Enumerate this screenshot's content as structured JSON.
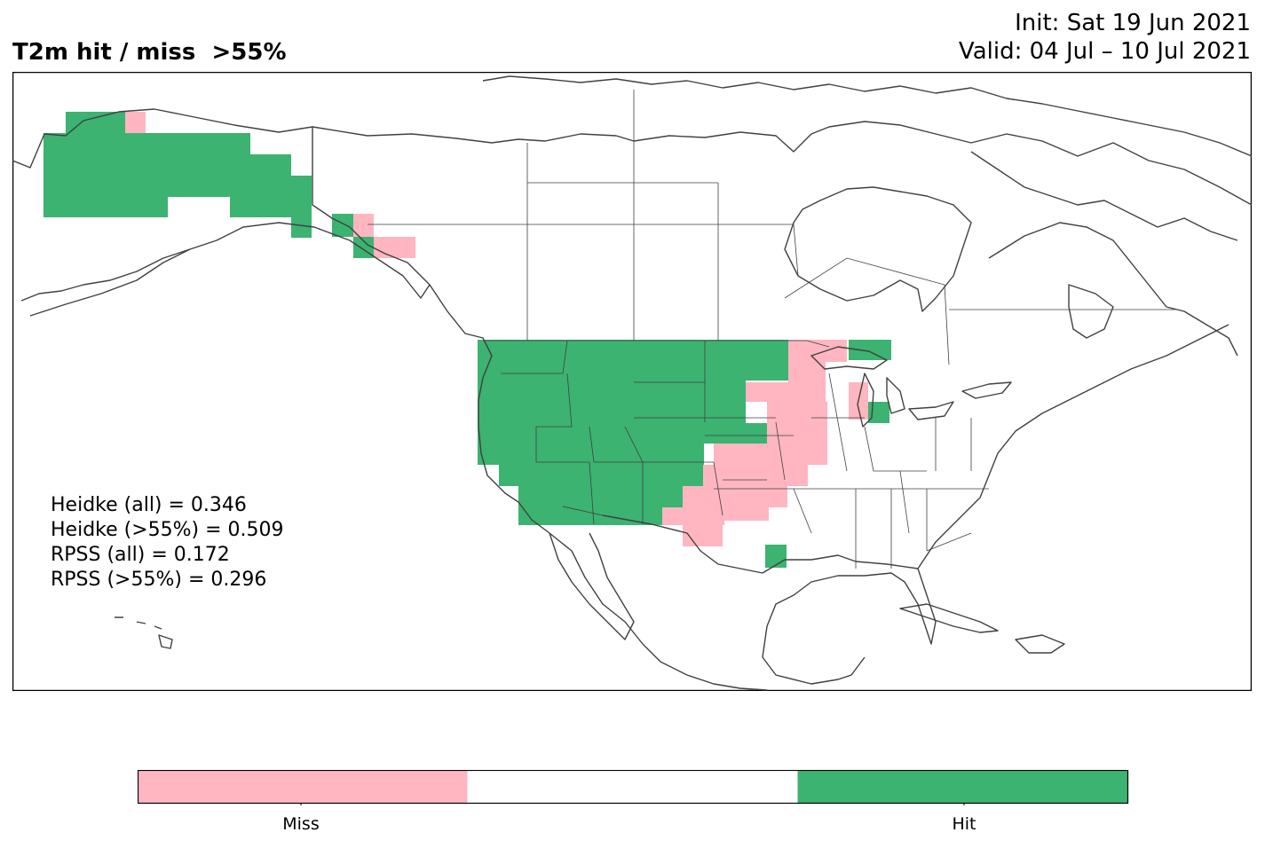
{
  "header": {
    "title": "T2m hit / miss  >55%",
    "init": "Init: Sat 19 Jun 2021",
    "valid": "Valid: 04 Jul – 10 Jul 2021"
  },
  "stats": [
    "Heidke (all) = 0.346",
    "Heidke (>55%) = 0.509",
    "RPSS (all) = 0.172",
    "RPSS (>55%) = 0.296"
  ],
  "legend": {
    "miss_label": "Miss",
    "hit_label": "Hit",
    "miss_color": "#ffb6c1",
    "neutral_color": "#ffffff",
    "hit_color": "#3cb371"
  },
  "map": {
    "region": "North America",
    "projection": "plate carree",
    "regions_hit": [
      "Alaska",
      "Pacific Northwest",
      "Northern Rockies",
      "Northern Plains",
      "Great Basin",
      "Southwest",
      "Upper Michigan",
      "Southeast Texas coast"
    ],
    "regions_miss": [
      "Upper Midwest",
      "Central Plains",
      "Southern Plains",
      "Southeast Alaska"
    ]
  }
}
